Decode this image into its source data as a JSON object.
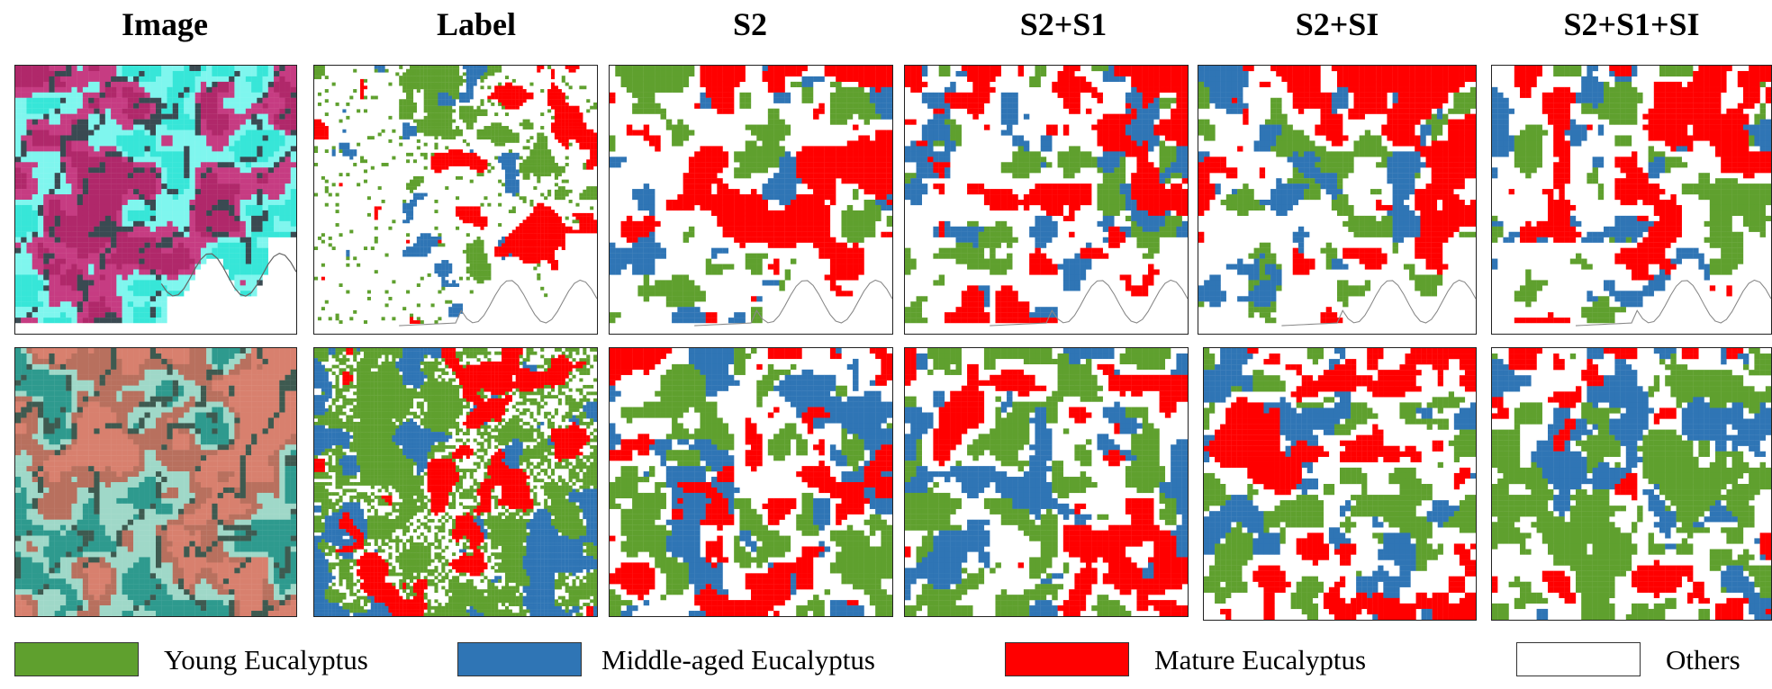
{
  "columns": [
    "Image",
    "Label",
    "S2",
    "S2+S1",
    "S2+SI",
    "S2+S1+SI"
  ],
  "legend": [
    {
      "label": "Young Eucalyptus",
      "color": "#5fa02e"
    },
    {
      "label": "Middle-aged Eucalyptus",
      "color": "#2f75b5"
    },
    {
      "label": "Mature Eucalyptus",
      "color": "#ff0000"
    },
    {
      "label": "Others",
      "color": "#ffffff"
    }
  ],
  "class_colors": {
    "young": "#5fa02e",
    "middle": "#2f75b5",
    "mature": "#ff0000",
    "others": "#ffffff"
  },
  "image_palette": {
    "row1": [
      "#37e6d8",
      "#b0286a",
      "#3a4a52",
      "#7ff6ee",
      "#c63c82"
    ],
    "row2": [
      "#2e9a8e",
      "#d8806e",
      "#3e5a50",
      "#9fd8c8",
      "#b8705e"
    ]
  }
}
